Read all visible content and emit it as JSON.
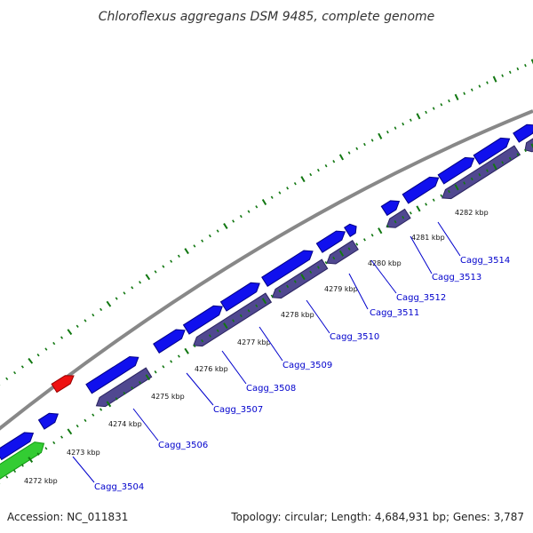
{
  "title": "Chloroflexus aggregans DSM 9485, complete genome",
  "footer": {
    "accession": "Accession: NC_011831",
    "summary": "Topology: circular; Length: 4,684,931 bp; Genes: 3,787"
  },
  "colors": {
    "forward_gene": "#1010ee",
    "reverse_gene": "#504890",
    "rrna": "#33cc33",
    "trna": "#ee1111",
    "backbone": "#888888",
    "tick": "#117711",
    "label_line": "#0000cc"
  },
  "kbp_ticks": [
    "4272 kbp",
    "4273 kbp",
    "4274 kbp",
    "4275 kbp",
    "4276 kbp",
    "4277 kbp",
    "4278 kbp",
    "4279 kbp",
    "4280 kbp",
    "4281 kbp",
    "4282 kbp"
  ],
  "gene_labels": [
    "Cagg_3504",
    "Cagg_3506",
    "Cagg_3507",
    "Cagg_3508",
    "Cagg_3509",
    "Cagg_3510",
    "Cagg_3511",
    "Cagg_3512",
    "Cagg_3513",
    "Cagg_3514"
  ]
}
